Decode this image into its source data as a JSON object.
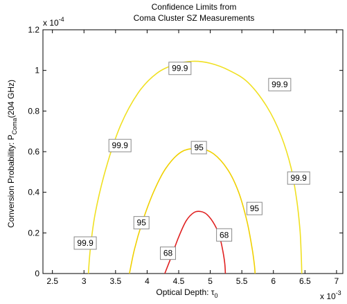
{
  "chart_data": {
    "type": "contour",
    "title_lines": [
      "Confidence Limits from",
      "Coma Cluster SZ Measurements"
    ],
    "xlabel": {
      "text": "Optical Depth: τ",
      "sub": "0"
    },
    "ylabel": {
      "text": "Conversion Probability: P",
      "sub": "Coma",
      "tail": "(204 GHz)"
    },
    "x_tick_labels": [
      "2.5",
      "3",
      "3.5",
      "4",
      "4.5",
      "5",
      "5.5",
      "6",
      "6.5",
      "7"
    ],
    "y_tick_labels": [
      "0",
      "0.2",
      "0.4",
      "0.6",
      "0.8",
      "1",
      "1.2"
    ],
    "x_multiplier": {
      "base": "x 10",
      "exp": "-3"
    },
    "y_multiplier": {
      "base": "x 10",
      "exp": "-4"
    },
    "xlim": [
      2.35,
      7.1
    ],
    "ylim": [
      0,
      1.2
    ],
    "x_units": "1e-3",
    "y_units": "1e-4",
    "grid": false,
    "contours": [
      {
        "level": "68",
        "color": "#e02020",
        "points": [
          [
            4.28,
            0
          ],
          [
            4.38,
            0.08
          ],
          [
            4.5,
            0.18
          ],
          [
            4.62,
            0.26
          ],
          [
            4.74,
            0.3
          ],
          [
            4.85,
            0.305
          ],
          [
            4.95,
            0.29
          ],
          [
            5.07,
            0.24
          ],
          [
            5.15,
            0.18
          ],
          [
            5.2,
            0.11
          ],
          [
            5.23,
            0.05
          ],
          [
            5.24,
            0
          ]
        ],
        "labels": [
          [
            4.33,
            0.1
          ],
          [
            5.22,
            0.19
          ]
        ]
      },
      {
        "level": "95",
        "color": "#f0d000",
        "points": [
          [
            3.72,
            0
          ],
          [
            3.8,
            0.12
          ],
          [
            3.92,
            0.25
          ],
          [
            4.1,
            0.4
          ],
          [
            4.3,
            0.52
          ],
          [
            4.55,
            0.6
          ],
          [
            4.82,
            0.615
          ],
          [
            5.05,
            0.59
          ],
          [
            5.28,
            0.51
          ],
          [
            5.45,
            0.4
          ],
          [
            5.58,
            0.26
          ],
          [
            5.66,
            0.13
          ],
          [
            5.7,
            0.04
          ],
          [
            5.71,
            0
          ]
        ],
        "labels": [
          [
            3.91,
            0.25
          ],
          [
            4.82,
            0.62
          ],
          [
            5.7,
            0.32
          ]
        ]
      },
      {
        "level": "99.9",
        "color": "#f0e020",
        "points": [
          [
            3.07,
            0
          ],
          [
            3.1,
            0.12
          ],
          [
            3.18,
            0.3
          ],
          [
            3.35,
            0.52
          ],
          [
            3.58,
            0.73
          ],
          [
            3.86,
            0.89
          ],
          [
            4.15,
            0.985
          ],
          [
            4.45,
            1.03
          ],
          [
            4.72,
            1.045
          ],
          [
            5.0,
            1.035
          ],
          [
            5.3,
            1.0
          ],
          [
            5.6,
            0.94
          ],
          [
            5.9,
            0.82
          ],
          [
            6.12,
            0.68
          ],
          [
            6.28,
            0.52
          ],
          [
            6.37,
            0.36
          ],
          [
            6.42,
            0.22
          ],
          [
            6.44,
            0.1
          ],
          [
            6.45,
            0
          ]
        ],
        "labels": [
          [
            3.02,
            0.15
          ],
          [
            3.57,
            0.63
          ],
          [
            4.52,
            1.01
          ],
          [
            6.1,
            0.93
          ],
          [
            6.4,
            0.47
          ]
        ]
      }
    ]
  }
}
